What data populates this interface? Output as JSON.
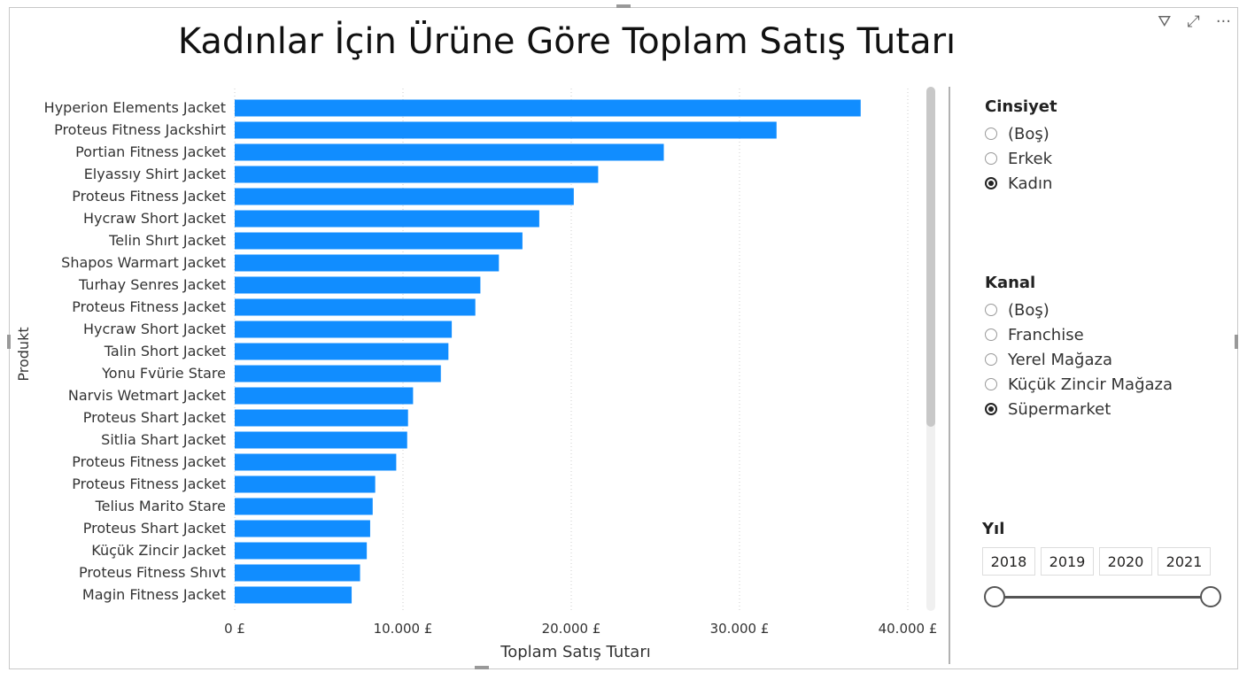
{
  "header": {
    "title": "Kadınlar İçin Ürüne Göre Toplam Satış Tutarı",
    "icons": [
      "filter-icon",
      "focus-mode-icon",
      "more-options-icon"
    ]
  },
  "chart_data": {
    "type": "bar",
    "orientation": "horizontal",
    "title": "Kadınlar İçin Ürüne Göre Toplam Satış Tutarı",
    "xlabel": "Toplam Satış Tutarı",
    "ylabel": "Produkt",
    "xlim": [
      0,
      40000
    ],
    "xticks": [
      "0 £",
      "10.000 £",
      "20.000 £",
      "30.000 £",
      "40.000 £"
    ],
    "grid": "vertical dotted",
    "color": "#118DFF",
    "categories": [
      "Hyperion Elements Jacket",
      "Proteus Fitness Jackshirt",
      "Portian Fitness Jacket",
      "Elyassıy Shirt Jacket",
      "Proteus Fitness Jacket",
      "Hycraw Short Jacket",
      "Telin Shırt Jacket",
      "Shapos Warmart Jacket",
      "Turhay Senres Jacket",
      "Proteus Fitness Jacket",
      "Hycraw Short Jacket",
      "Talin Short Jacket",
      "Yonu Fvürie Stare",
      "Narvis Wetmart Jacket",
      "Proteus Shart Jacket",
      "Sitlia Shart Jacket",
      "Proteus Fitness Jacket",
      "Proteus Fitness Jacket",
      "Telius Marito Stare",
      "Proteus Shart Jacket",
      "Küçük Zincir Jacket",
      "Proteus Fitness Shıvt",
      "Magin Fitness Jacket"
    ],
    "values": [
      37200,
      32200,
      25500,
      21600,
      20150,
      18100,
      17100,
      15700,
      14600,
      14300,
      12900,
      12700,
      12250,
      10600,
      10300,
      10250,
      9600,
      8350,
      8200,
      8050,
      7850,
      7450,
      6950
    ]
  },
  "filters": {
    "gender": {
      "title": "Cinsiyet",
      "options": [
        "(Boş)",
        "Erkek",
        "Kadın"
      ],
      "selected": 2
    },
    "channel": {
      "title": "Kanal",
      "options": [
        "(Boş)",
        "Franchise",
        "Yerel Mağaza",
        "Küçük Zincir Mağaza",
        "Süpermarket"
      ],
      "selected": 4
    },
    "year": {
      "title": "Yıl",
      "values": [
        "2018",
        "2019",
        "2020",
        "2021"
      ],
      "range": [
        "2018",
        "2021"
      ]
    }
  }
}
